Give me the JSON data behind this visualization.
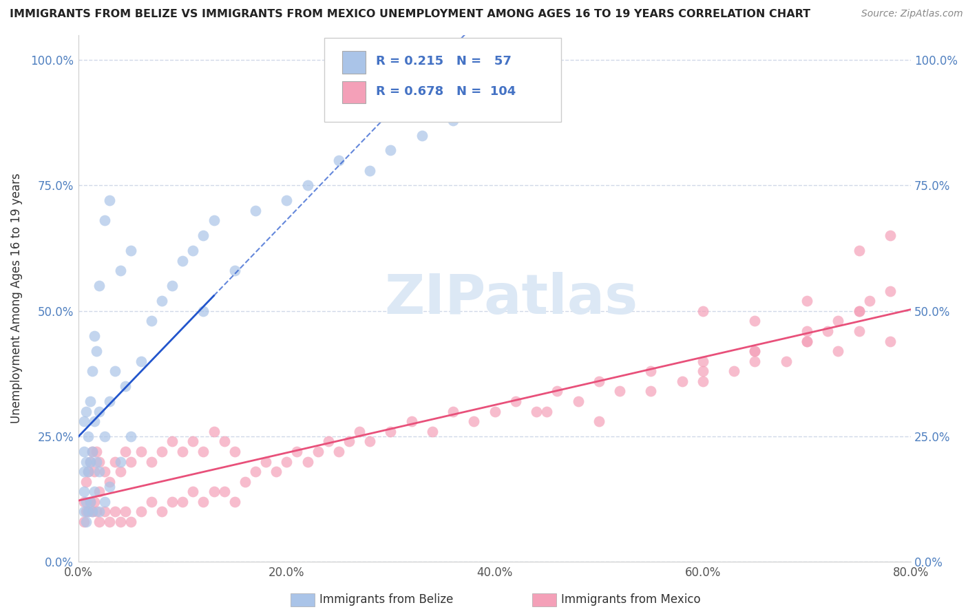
{
  "title": "IMMIGRANTS FROM BELIZE VS IMMIGRANTS FROM MEXICO UNEMPLOYMENT AMONG AGES 16 TO 19 YEARS CORRELATION CHART",
  "source": "Source: ZipAtlas.com",
  "ylabel": "Unemployment Among Ages 16 to 19 years",
  "belize_R": 0.215,
  "belize_N": 57,
  "mexico_R": 0.678,
  "mexico_N": 104,
  "belize_color": "#aac4e8",
  "mexico_color": "#f4a0b8",
  "belize_line_color": "#2255cc",
  "mexico_line_color": "#e8507a",
  "xlim": [
    0.0,
    0.8
  ],
  "ylim": [
    0.0,
    1.05
  ],
  "yticks": [
    0.0,
    0.25,
    0.5,
    0.75,
    1.0
  ],
  "ytick_labels": [
    "0.0%",
    "25.0%",
    "50.0%",
    "75.0%",
    "100.0%"
  ],
  "xticks": [
    0.0,
    0.2,
    0.4,
    0.6,
    0.8
  ],
  "xtick_labels": [
    "0.0%",
    "20.0%",
    "40.0%",
    "60.0%",
    "80.0%"
  ],
  "belize_x": [
    0.005,
    0.005,
    0.005,
    0.005,
    0.005,
    0.007,
    0.007,
    0.007,
    0.007,
    0.009,
    0.009,
    0.009,
    0.011,
    0.011,
    0.011,
    0.013,
    0.013,
    0.013,
    0.015,
    0.015,
    0.015,
    0.017,
    0.017,
    0.02,
    0.02,
    0.02,
    0.02,
    0.025,
    0.025,
    0.025,
    0.03,
    0.03,
    0.03,
    0.035,
    0.04,
    0.04,
    0.045,
    0.05,
    0.05,
    0.06,
    0.07,
    0.08,
    0.09,
    0.1,
    0.11,
    0.12,
    0.13,
    0.15,
    0.17,
    0.2,
    0.22,
    0.25,
    0.28,
    0.3,
    0.33,
    0.36,
    0.12
  ],
  "belize_y": [
    0.1,
    0.14,
    0.18,
    0.22,
    0.28,
    0.08,
    0.12,
    0.2,
    0.3,
    0.1,
    0.18,
    0.25,
    0.12,
    0.2,
    0.32,
    0.1,
    0.22,
    0.38,
    0.14,
    0.28,
    0.45,
    0.2,
    0.42,
    0.1,
    0.18,
    0.3,
    0.55,
    0.12,
    0.25,
    0.68,
    0.15,
    0.32,
    0.72,
    0.38,
    0.2,
    0.58,
    0.35,
    0.25,
    0.62,
    0.4,
    0.48,
    0.52,
    0.55,
    0.6,
    0.62,
    0.65,
    0.68,
    0.58,
    0.7,
    0.72,
    0.75,
    0.8,
    0.78,
    0.82,
    0.85,
    0.88,
    0.5
  ],
  "mexico_x": [
    0.005,
    0.005,
    0.007,
    0.007,
    0.009,
    0.009,
    0.011,
    0.011,
    0.013,
    0.013,
    0.015,
    0.015,
    0.017,
    0.017,
    0.02,
    0.02,
    0.02,
    0.025,
    0.025,
    0.03,
    0.03,
    0.035,
    0.035,
    0.04,
    0.04,
    0.045,
    0.045,
    0.05,
    0.05,
    0.06,
    0.06,
    0.07,
    0.07,
    0.08,
    0.08,
    0.09,
    0.09,
    0.1,
    0.1,
    0.11,
    0.11,
    0.12,
    0.12,
    0.13,
    0.13,
    0.14,
    0.14,
    0.15,
    0.15,
    0.16,
    0.17,
    0.18,
    0.19,
    0.2,
    0.21,
    0.22,
    0.23,
    0.24,
    0.25,
    0.26,
    0.27,
    0.28,
    0.3,
    0.32,
    0.34,
    0.36,
    0.38,
    0.4,
    0.42,
    0.44,
    0.46,
    0.48,
    0.5,
    0.52,
    0.55,
    0.58,
    0.6,
    0.63,
    0.65,
    0.68,
    0.7,
    0.73,
    0.75,
    0.78,
    0.6,
    0.65,
    0.7,
    0.75,
    0.78,
    0.45,
    0.5,
    0.55,
    0.6,
    0.65,
    0.7,
    0.75,
    0.78,
    0.6,
    0.65,
    0.7,
    0.73,
    0.76,
    0.72,
    0.75
  ],
  "mexico_y": [
    0.08,
    0.12,
    0.1,
    0.16,
    0.1,
    0.18,
    0.12,
    0.2,
    0.1,
    0.22,
    0.12,
    0.18,
    0.1,
    0.22,
    0.08,
    0.14,
    0.2,
    0.1,
    0.18,
    0.08,
    0.16,
    0.1,
    0.2,
    0.08,
    0.18,
    0.1,
    0.22,
    0.08,
    0.2,
    0.1,
    0.22,
    0.12,
    0.2,
    0.1,
    0.22,
    0.12,
    0.24,
    0.12,
    0.22,
    0.14,
    0.24,
    0.12,
    0.22,
    0.14,
    0.26,
    0.14,
    0.24,
    0.12,
    0.22,
    0.16,
    0.18,
    0.2,
    0.18,
    0.2,
    0.22,
    0.2,
    0.22,
    0.24,
    0.22,
    0.24,
    0.26,
    0.24,
    0.26,
    0.28,
    0.26,
    0.3,
    0.28,
    0.3,
    0.32,
    0.3,
    0.34,
    0.32,
    0.36,
    0.34,
    0.38,
    0.36,
    0.4,
    0.38,
    0.42,
    0.4,
    0.44,
    0.42,
    0.46,
    0.44,
    0.5,
    0.48,
    0.52,
    0.62,
    0.65,
    0.3,
    0.28,
    0.34,
    0.38,
    0.42,
    0.46,
    0.5,
    0.54,
    0.36,
    0.4,
    0.44,
    0.48,
    0.52,
    0.46,
    0.5
  ],
  "background_color": "#ffffff",
  "grid_color": "#d0d8e8",
  "watermark_color": "#dce8f5"
}
